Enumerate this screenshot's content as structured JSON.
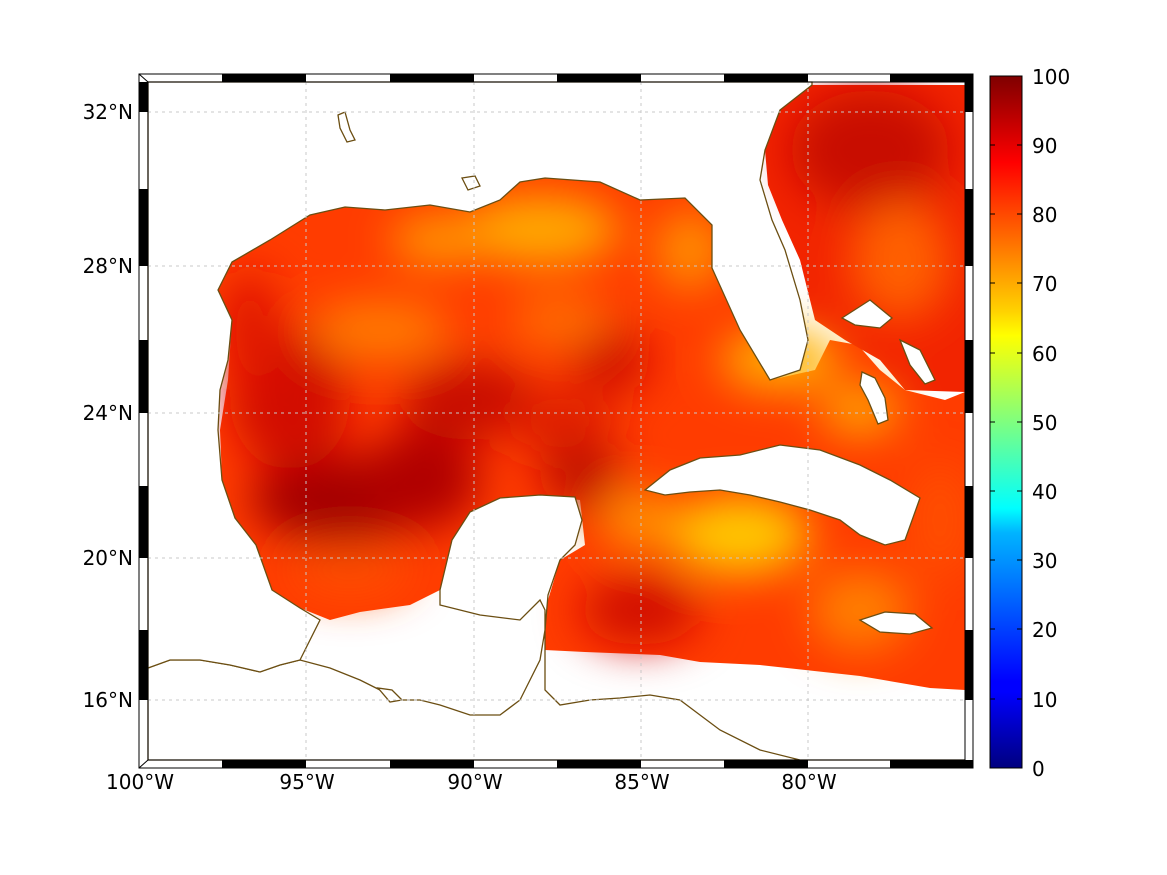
{
  "map": {
    "lat_ticks": [
      "32°N",
      "28°N",
      "24°N",
      "20°N",
      "16°N"
    ],
    "lon_ticks": [
      "100°W",
      "95°W",
      "90°W",
      "85°W",
      "80°W"
    ],
    "grid": true,
    "coastline_color": "#6b4e12",
    "land_color": "#ffffff"
  },
  "colorbar": {
    "ticks": [
      "100",
      "90",
      "80",
      "70",
      "60",
      "50",
      "40",
      "30",
      "20",
      "10",
      "0"
    ],
    "range": [
      0,
      100
    ],
    "colormap": "jet"
  },
  "chart_data": {
    "type": "heatmap",
    "lon_range": [
      -100,
      -75
    ],
    "lat_range": [
      14,
      33
    ],
    "value_range": [
      0,
      100
    ],
    "value_estimates": {
      "central_gulf": 88,
      "bay_of_campeche": 95,
      "northeast_gulf_near_florida": 72,
      "atlantic_off_florida": 92,
      "caribbean_south_of_cuba": 72,
      "west_caribbean": 90
    }
  }
}
